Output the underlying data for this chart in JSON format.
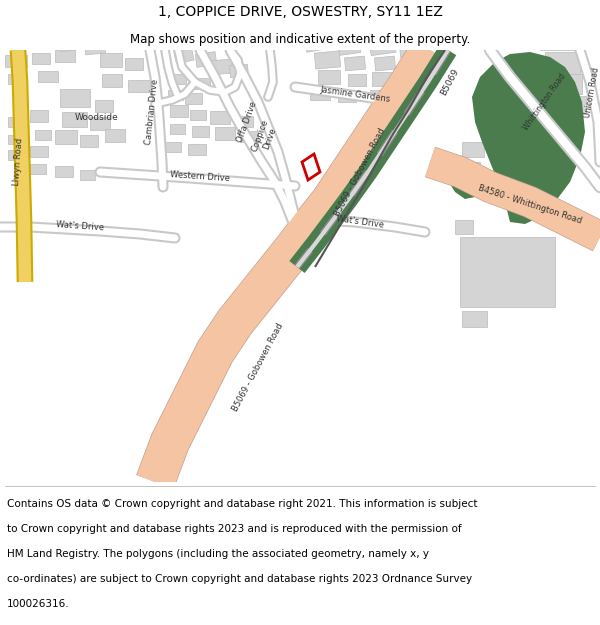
{
  "title": "1, COPPICE DRIVE, OSWESTRY, SY11 1EZ",
  "subtitle": "Map shows position and indicative extent of the property.",
  "title_fontsize": 10,
  "subtitle_fontsize": 8.5,
  "copyright_fontsize": 7.5,
  "map_bg": "#ffffff",
  "road_outline_color": "#cccccc",
  "road_fill_color": "#ffffff",
  "main_road_color": "#f5c5a3",
  "green_color": "#4a7c4e",
  "yellow_road_color": "#f0d060",
  "building_color": "#d4d4d4",
  "building_edge_color": "#bbbbbb",
  "property_color": "#cc0000",
  "copyright_lines": [
    "Contains OS data © Crown copyright and database right 2021. This information is subject",
    "to Crown copyright and database rights 2023 and is reproduced with the permission of",
    "HM Land Registry. The polygons (including the associated geometry, namely x, y",
    "co-ordinates) are subject to Crown copyright and database rights 2023 Ordnance Survey",
    "100026316."
  ]
}
